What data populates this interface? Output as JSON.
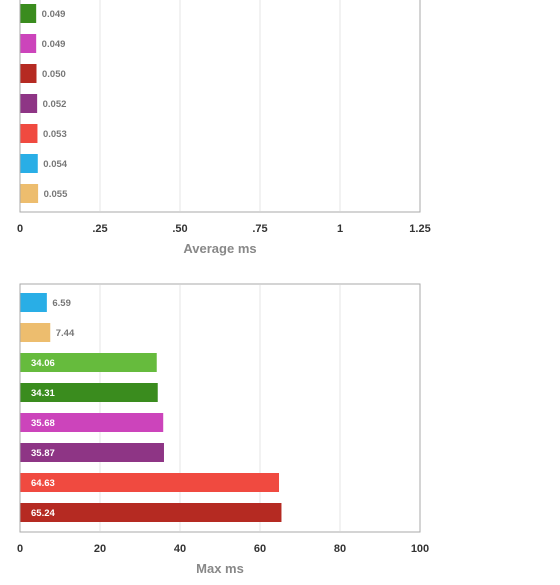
{
  "chart_data": [
    {
      "type": "bar",
      "orientation": "horizontal",
      "xlabel": "Average ms",
      "xlim": [
        0,
        1.25
      ],
      "xticks": [
        "0",
        ".25",
        ".50",
        ".75",
        "1",
        "1.25"
      ],
      "grid": true,
      "bars": [
        {
          "value": 0.049,
          "label": "0.049",
          "color": "#3a8c1e"
        },
        {
          "value": 0.049,
          "label": "0.049",
          "color": "#cc44bb"
        },
        {
          "value": 0.05,
          "label": "0.050",
          "color": "#b52a22"
        },
        {
          "value": 0.052,
          "label": "0.052",
          "color": "#8e3585"
        },
        {
          "value": 0.053,
          "label": "0.053",
          "color": "#f04a40"
        },
        {
          "value": 0.054,
          "label": "0.054",
          "color": "#29aee6"
        },
        {
          "value": 0.055,
          "label": "0.055",
          "color": "#edbd6e"
        }
      ]
    },
    {
      "type": "bar",
      "orientation": "horizontal",
      "xlabel": "Max ms",
      "xlim": [
        0,
        100
      ],
      "xticks": [
        "0",
        "20",
        "40",
        "60",
        "80",
        "100"
      ],
      "grid": true,
      "bars": [
        {
          "value": 6.59,
          "label": "6.59",
          "color": "#29aee6"
        },
        {
          "value": 7.44,
          "label": "7.44",
          "color": "#edbd6e"
        },
        {
          "value": 34.06,
          "label": "34.06",
          "color": "#66bb3d"
        },
        {
          "value": 34.31,
          "label": "34.31",
          "color": "#3a8c1e"
        },
        {
          "value": 35.68,
          "label": "35.68",
          "color": "#cc44bb"
        },
        {
          "value": 35.87,
          "label": "35.87",
          "color": "#8e3585"
        },
        {
          "value": 64.63,
          "label": "64.63",
          "color": "#f04a40"
        },
        {
          "value": 65.24,
          "label": "65.24",
          "color": "#b52a22"
        }
      ]
    }
  ]
}
